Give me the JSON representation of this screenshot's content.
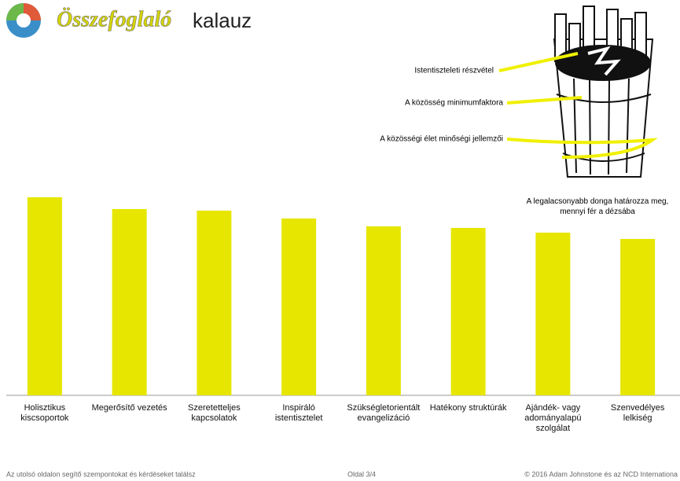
{
  "header": {
    "title_script": "Összefoglaló",
    "title_rest": "kalauz"
  },
  "illustration": {
    "labels": [
      "Istentiszteleti részvétel",
      "A közösség minimumfaktora",
      "A közösségi élet minőségi jellemzői"
    ],
    "caption": "A legalacsonyabb donga határozza meg,\nmennyi fér a dézsába"
  },
  "chart_data": {
    "type": "bar",
    "categories": [
      "Holisztikus\nkiscsoportok",
      "Megerősítő vezetés",
      "Szeretetteljes\nkapcsolatok",
      "Inspiráló\nistentisztelet",
      "Szükségletorientált\nevangelizáció",
      "Hatékony struktúrák",
      "Ajándék- vagy\nadományalapú\nszolgálat",
      "Szenvedélyes\nlelkiség"
    ],
    "values": [
      252,
      237,
      235,
      225,
      215,
      213,
      207,
      199
    ],
    "color": "#e6e600",
    "ylim": [
      0,
      252
    ]
  },
  "footer": {
    "left": "Az utolsó oldalon segítő szempontokat és kérdéseket találsz",
    "center": "Oldal 3/4",
    "right": "© 2016 Adam Johnstone és az NCD Internationa"
  }
}
